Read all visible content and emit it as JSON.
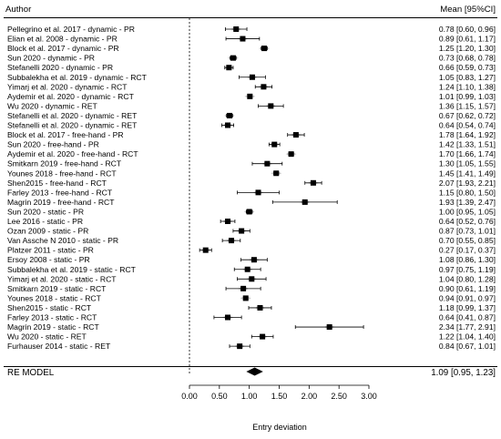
{
  "chart_data": {
    "type": "forest",
    "header_left": "Author",
    "header_right": "Mean [95%CI]",
    "xlabel": "Entry deviation",
    "xlim": [
      0,
      3
    ],
    "x_ticks": [
      "0.00",
      "0.50",
      "1.00",
      "1.50",
      "2.00",
      "2.50",
      "3.00"
    ],
    "reference_line": 0,
    "studies": [
      {
        "label": "Pellegrino et al. 2017 - dynamic - PR",
        "mean": 0.78,
        "lo": 0.6,
        "hi": 0.96,
        "ci_text": "0.78 [0.60, 0.96]"
      },
      {
        "label": "Elian et al. 2008 - dynamic - PR",
        "mean": 0.89,
        "lo": 0.61,
        "hi": 1.17,
        "ci_text": "0.89 [0.61, 1.17]"
      },
      {
        "label": "Block et al. 2017 - dynamic - PR",
        "mean": 1.25,
        "lo": 1.2,
        "hi": 1.3,
        "ci_text": "1.25 [1.20, 1.30]"
      },
      {
        "label": "Sun 2020 - dynamic - PR",
        "mean": 0.73,
        "lo": 0.68,
        "hi": 0.78,
        "ci_text": "0.73 [0.68, 0.78]"
      },
      {
        "label": "Stefanelli 2020 - dynamic - PR",
        "mean": 0.66,
        "lo": 0.59,
        "hi": 0.73,
        "ci_text": "0.66 [0.59, 0.73]"
      },
      {
        "label": "Subbalekha et al. 2019 - dynamic - RCT",
        "mean": 1.05,
        "lo": 0.83,
        "hi": 1.27,
        "ci_text": "1.05 [0.83, 1.27]"
      },
      {
        "label": "Yimarj et al. 2020  - dynamic - RCT",
        "mean": 1.24,
        "lo": 1.1,
        "hi": 1.38,
        "ci_text": "1.24 [1.10, 1.38]"
      },
      {
        "label": "Aydemir et al. 2020 - dynamic - RCT",
        "mean": 1.01,
        "lo": 0.99,
        "hi": 1.03,
        "ci_text": "1.01 [0.99, 1.03]"
      },
      {
        "label": "Wu 2020 - dynamic - RET",
        "mean": 1.36,
        "lo": 1.15,
        "hi": 1.57,
        "ci_text": "1.36 [1.15, 1.57]"
      },
      {
        "label": "Stefanelli et al. 2020 - dynamic - RET",
        "mean": 0.67,
        "lo": 0.62,
        "hi": 0.72,
        "ci_text": "0.67 [0.62, 0.72]"
      },
      {
        "label": "Stefanelli et al. 2020 - dynamic - RET",
        "mean": 0.64,
        "lo": 0.54,
        "hi": 0.74,
        "ci_text": "0.64 [0.54, 0.74]"
      },
      {
        "label": "Block et al. 2017 - free-hand - PR",
        "mean": 1.78,
        "lo": 1.64,
        "hi": 1.92,
        "ci_text": "1.78 [1.64, 1.92]"
      },
      {
        "label": "Sun 2020 - free-hand - PR",
        "mean": 1.42,
        "lo": 1.33,
        "hi": 1.51,
        "ci_text": "1.42 [1.33, 1.51]"
      },
      {
        "label": "Aydemir et al. 2020 - free-hand - RCT",
        "mean": 1.7,
        "lo": 1.66,
        "hi": 1.74,
        "ci_text": "1.70 [1.66, 1.74]"
      },
      {
        "label": "Smitkarn 2019 - free-hand - RCT",
        "mean": 1.3,
        "lo": 1.05,
        "hi": 1.55,
        "ci_text": "1.30 [1.05, 1.55]"
      },
      {
        "label": "Younes 2018 - free-hand - RCT",
        "mean": 1.45,
        "lo": 1.41,
        "hi": 1.49,
        "ci_text": "1.45 [1.41, 1.49]"
      },
      {
        "label": "Shen2015 - free-hand - RCT",
        "mean": 2.07,
        "lo": 1.93,
        "hi": 2.21,
        "ci_text": "2.07 [1.93, 2.21]"
      },
      {
        "label": "Farley 2013 - free-hand - RCT",
        "mean": 1.15,
        "lo": 0.8,
        "hi": 1.5,
        "ci_text": "1.15 [0.80, 1.50]"
      },
      {
        "label": "Magrin 2019 - free-hand - RCT",
        "mean": 1.93,
        "lo": 1.39,
        "hi": 2.47,
        "ci_text": "1.93 [1.39, 2.47]"
      },
      {
        "label": "Sun 2020 - static - PR",
        "mean": 1.0,
        "lo": 0.95,
        "hi": 1.05,
        "ci_text": "1.00 [0.95, 1.05]"
      },
      {
        "label": "Lee 2016 - static - PR",
        "mean": 0.64,
        "lo": 0.52,
        "hi": 0.76,
        "ci_text": "0.64 [0.52, 0.76]"
      },
      {
        "label": "Ozan 2009 - static - PR",
        "mean": 0.87,
        "lo": 0.73,
        "hi": 1.01,
        "ci_text": "0.87 [0.73, 1.01]"
      },
      {
        "label": "Van Assche N 2010 - static - PR",
        "mean": 0.7,
        "lo": 0.55,
        "hi": 0.85,
        "ci_text": "0.70 [0.55, 0.85]"
      },
      {
        "label": "Platzer 2011 - static - PR",
        "mean": 0.27,
        "lo": 0.17,
        "hi": 0.37,
        "ci_text": "0.27 [0.17, 0.37]"
      },
      {
        "label": "Ersoy 2008 - static - PR",
        "mean": 1.08,
        "lo": 0.86,
        "hi": 1.3,
        "ci_text": "1.08 [0.86, 1.30]"
      },
      {
        "label": "Subbalekha et al. 2019 - static - RCT",
        "mean": 0.97,
        "lo": 0.75,
        "hi": 1.19,
        "ci_text": "0.97 [0.75, 1.19]"
      },
      {
        "label": "Yimarj et al. 2020  - static - RCT",
        "mean": 1.04,
        "lo": 0.8,
        "hi": 1.28,
        "ci_text": "1.04 [0.80, 1.28]"
      },
      {
        "label": "Smitkarn 2019 - static - RCT",
        "mean": 0.9,
        "lo": 0.61,
        "hi": 1.19,
        "ci_text": "0.90 [0.61, 1.19]"
      },
      {
        "label": "Younes 2018 - static - RCT",
        "mean": 0.94,
        "lo": 0.91,
        "hi": 0.97,
        "ci_text": "0.94 [0.91, 0.97]"
      },
      {
        "label": "Shen2015 - static - RCT",
        "mean": 1.18,
        "lo": 0.99,
        "hi": 1.37,
        "ci_text": "1.18 [0.99, 1.37]"
      },
      {
        "label": "Farley 2013 - static - RCT",
        "mean": 0.64,
        "lo": 0.41,
        "hi": 0.87,
        "ci_text": "0.64 [0.41, 0.87]"
      },
      {
        "label": "Magrin 2019 - static - RCT",
        "mean": 2.34,
        "lo": 1.77,
        "hi": 2.91,
        "ci_text": "2.34 [1.77, 2.91]"
      },
      {
        "label": "Wu 2020 - static - RET",
        "mean": 1.22,
        "lo": 1.04,
        "hi": 1.4,
        "ci_text": "1.22 [1.04, 1.40]"
      },
      {
        "label": "Furhauser 2014 - static - RET",
        "mean": 0.84,
        "lo": 0.67,
        "hi": 1.01,
        "ci_text": "0.84 [0.67, 1.01]"
      }
    ],
    "summary": {
      "label": "RE MODEL",
      "mean": 1.09,
      "lo": 0.95,
      "hi": 1.23,
      "ci_text": "1.09 [0.95, 1.23]"
    },
    "colors": {
      "square": "#000000",
      "diamond_grey": "#c4c4c4",
      "line": "#000000"
    }
  }
}
